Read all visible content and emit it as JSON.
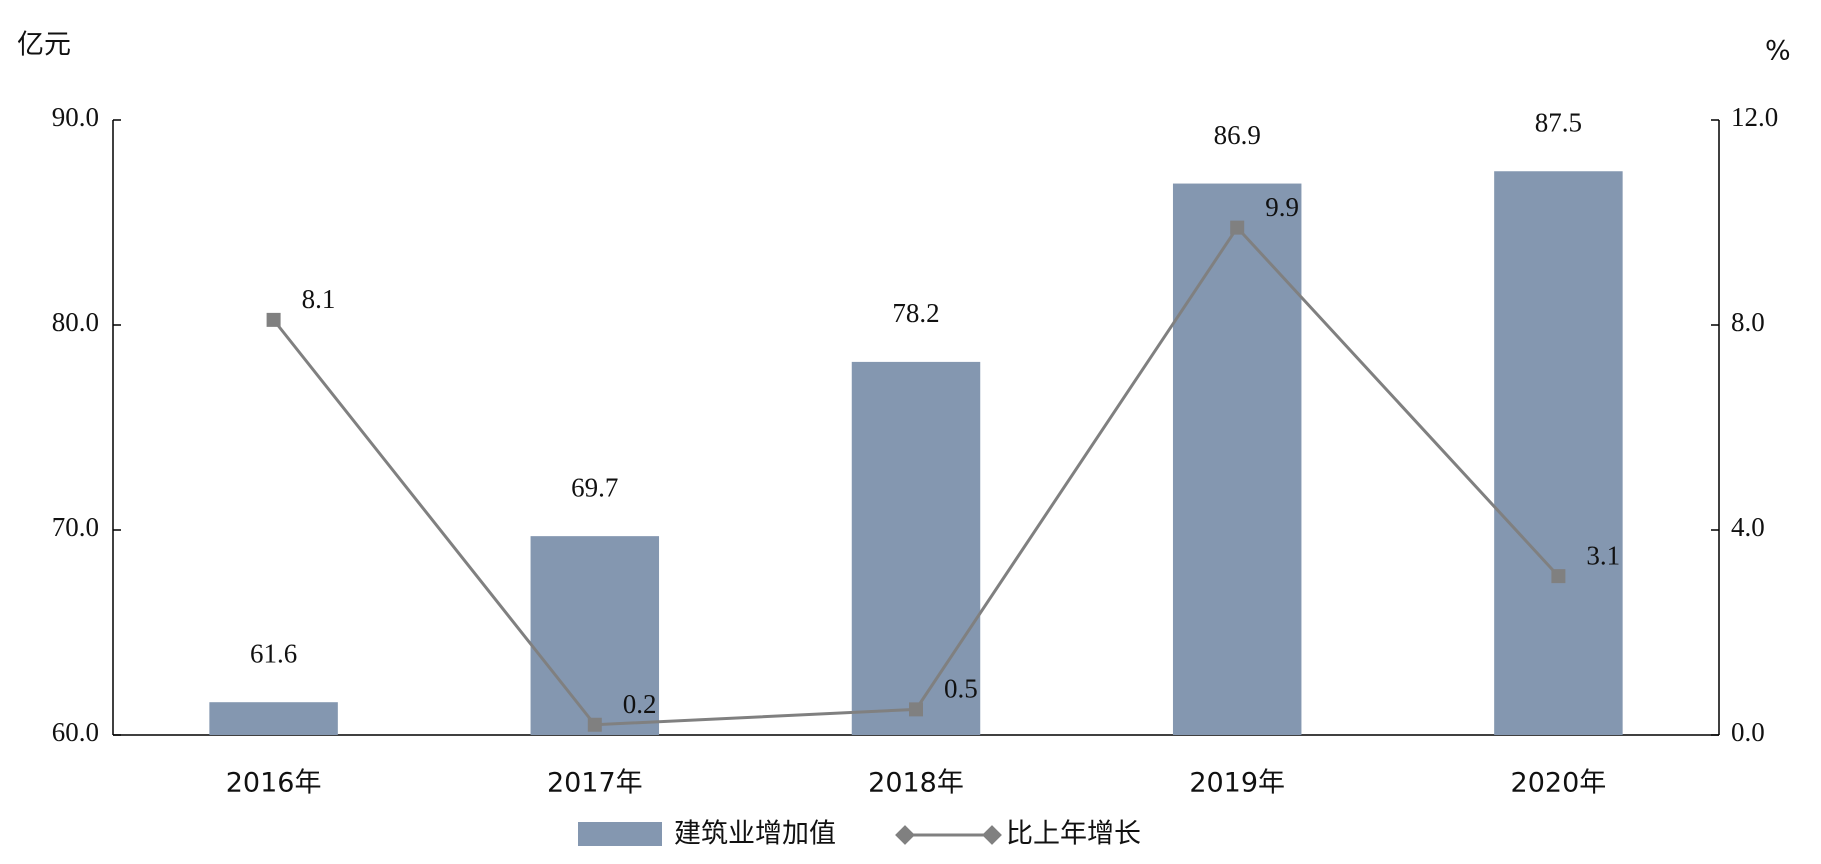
{
  "chart_data": {
    "type": "bar",
    "y_unit": "亿元",
    "y2_unit": "%",
    "categories": [
      "2016年",
      "2017年",
      "2018年",
      "2019年",
      "2020年"
    ],
    "series": [
      {
        "name": "建筑业增加值",
        "type": "bar",
        "color": "#8497b0",
        "values": [
          61.6,
          69.7,
          78.2,
          86.9,
          87.5
        ]
      },
      {
        "name": "比上年增长",
        "type": "line",
        "axis": "y2",
        "color": "#808080",
        "values": [
          8.1,
          0.2,
          0.5,
          9.9,
          3.1
        ]
      }
    ],
    "ylim": [
      60,
      90
    ],
    "yticks": [
      {
        "value": 60,
        "label": "60.0"
      },
      {
        "value": 70,
        "label": "70.0"
      },
      {
        "value": 80,
        "label": "80.0"
      },
      {
        "value": 90,
        "label": "90.0"
      }
    ],
    "y2lim": [
      0,
      12
    ],
    "y2ticks": [
      {
        "value": 0,
        "label": "0.0"
      },
      {
        "value": 4,
        "label": "4.0"
      },
      {
        "value": 8,
        "label": "8.0"
      },
      {
        "value": 12,
        "label": "12.0"
      }
    ],
    "grid": false,
    "legend": "bottom"
  }
}
